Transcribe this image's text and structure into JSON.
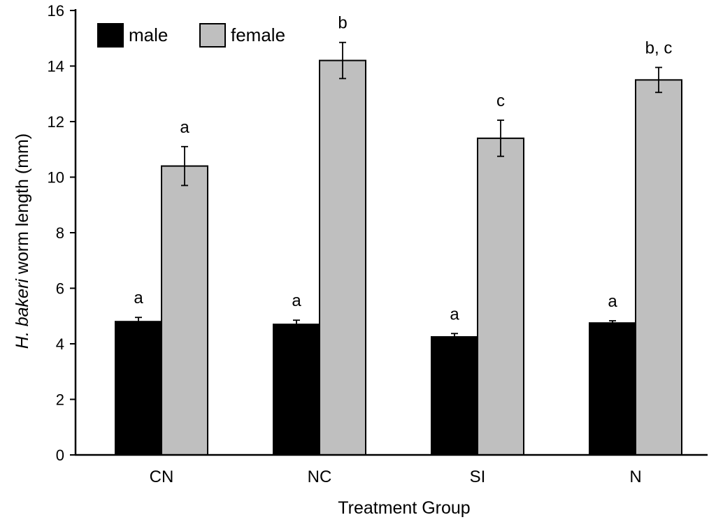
{
  "chart_data": {
    "type": "bar",
    "title": "",
    "xlabel": "Treatment Group",
    "ylabel": {
      "italic": "H. bakeri",
      "rest": " worm length (mm)"
    },
    "ylim": [
      0,
      16
    ],
    "yticks": [
      "0",
      "2",
      "4",
      "6",
      "8",
      "10",
      "12",
      "14",
      "16"
    ],
    "categories": [
      "CN",
      "NC",
      "SI",
      "N"
    ],
    "legend_position": "top-left",
    "series": [
      {
        "name": "male",
        "color": "#000000",
        "values": [
          4.8,
          4.7,
          4.25,
          4.75
        ],
        "errors": [
          0.15,
          0.15,
          0.12,
          0.08
        ],
        "significance": [
          "a",
          "a",
          "a",
          "a"
        ]
      },
      {
        "name": "female",
        "color": "#bfbfbf",
        "values": [
          10.4,
          14.2,
          11.4,
          13.5
        ],
        "errors": [
          0.7,
          0.65,
          0.65,
          0.45
        ],
        "significance": [
          "a",
          "b",
          "c",
          "b, c"
        ]
      }
    ]
  }
}
